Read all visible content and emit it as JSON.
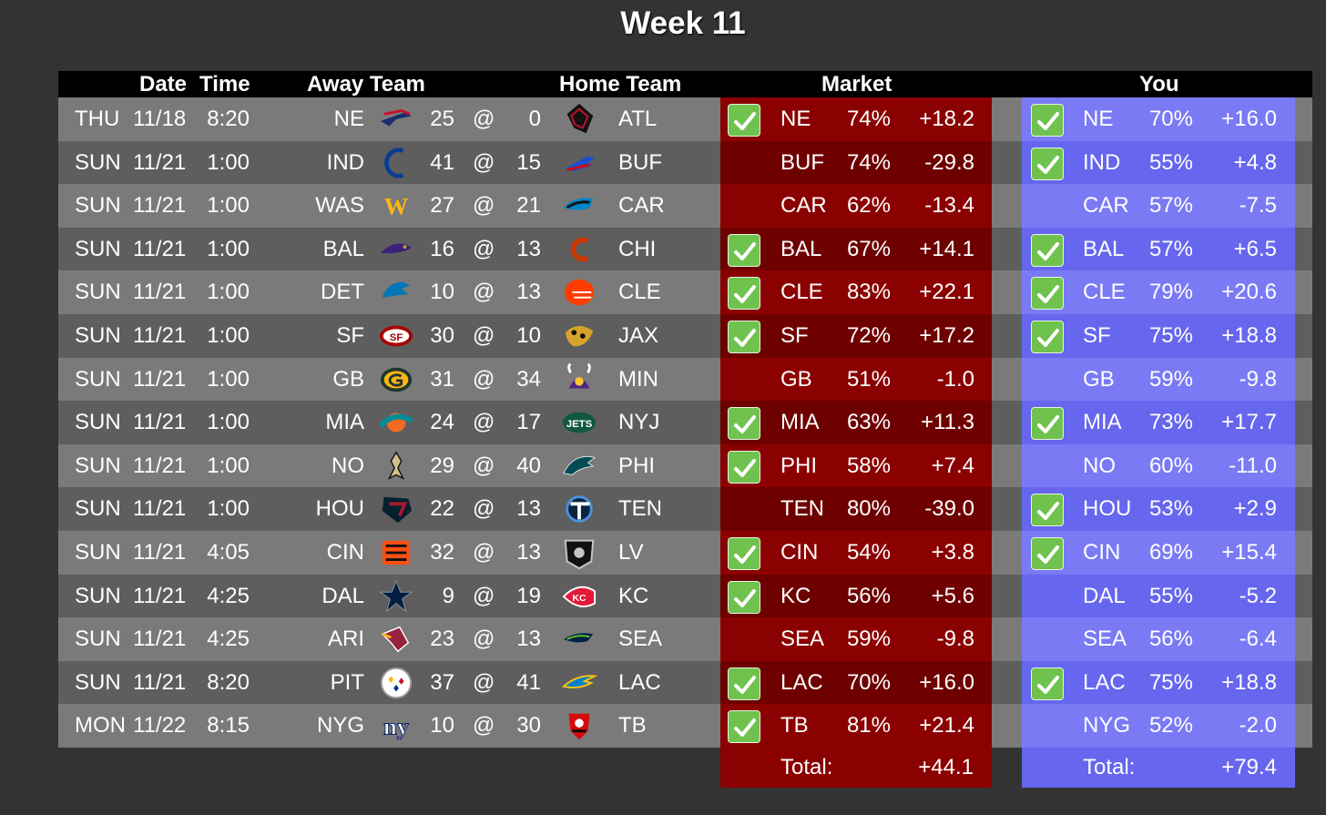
{
  "title": "Week 11",
  "headers": {
    "date": "Date",
    "time": "Time",
    "away": "Away Team",
    "home": "Home Team",
    "market": "Market",
    "you": "You"
  },
  "colors": {
    "row_light": "#7a7a7a",
    "row_dark": "#5e5e5e",
    "market_light": "#8b0000",
    "market_dark": "#6e0000",
    "you_light": "#7a7af5",
    "you_dark": "#6666ee",
    "check": "#6fc24e"
  },
  "games": [
    {
      "day": "THU",
      "date": "11/18",
      "time": "8:20",
      "away": "NE",
      "away_score": "25",
      "at": "@",
      "home_score": "0",
      "home": "ATL",
      "away_icon": "patriots-logo",
      "home_icon": "falcons-logo",
      "market": {
        "check": true,
        "pick": "NE",
        "pct": "74%",
        "pts": "+18.2"
      },
      "you": {
        "check": true,
        "pick": "NE",
        "pct": "70%",
        "pts": "+16.0"
      }
    },
    {
      "day": "SUN",
      "date": "11/21",
      "time": "1:00",
      "away": "IND",
      "away_score": "41",
      "at": "@",
      "home_score": "15",
      "home": "BUF",
      "away_icon": "colts-logo",
      "home_icon": "bills-logo",
      "market": {
        "check": false,
        "pick": "BUF",
        "pct": "74%",
        "pts": "-29.8"
      },
      "you": {
        "check": true,
        "pick": "IND",
        "pct": "55%",
        "pts": "+4.8"
      }
    },
    {
      "day": "SUN",
      "date": "11/21",
      "time": "1:00",
      "away": "WAS",
      "away_score": "27",
      "at": "@",
      "home_score": "21",
      "home": "CAR",
      "away_icon": "washington-logo",
      "home_icon": "panthers-logo",
      "market": {
        "check": false,
        "pick": "CAR",
        "pct": "62%",
        "pts": "-13.4"
      },
      "you": {
        "check": false,
        "pick": "CAR",
        "pct": "57%",
        "pts": "-7.5"
      }
    },
    {
      "day": "SUN",
      "date": "11/21",
      "time": "1:00",
      "away": "BAL",
      "away_score": "16",
      "at": "@",
      "home_score": "13",
      "home": "CHI",
      "away_icon": "ravens-logo",
      "home_icon": "bears-logo",
      "market": {
        "check": true,
        "pick": "BAL",
        "pct": "67%",
        "pts": "+14.1"
      },
      "you": {
        "check": true,
        "pick": "BAL",
        "pct": "57%",
        "pts": "+6.5"
      }
    },
    {
      "day": "SUN",
      "date": "11/21",
      "time": "1:00",
      "away": "DET",
      "away_score": "10",
      "at": "@",
      "home_score": "13",
      "home": "CLE",
      "away_icon": "lions-logo",
      "home_icon": "browns-logo",
      "market": {
        "check": true,
        "pick": "CLE",
        "pct": "83%",
        "pts": "+22.1"
      },
      "you": {
        "check": true,
        "pick": "CLE",
        "pct": "79%",
        "pts": "+20.6"
      }
    },
    {
      "day": "SUN",
      "date": "11/21",
      "time": "1:00",
      "away": "SF",
      "away_score": "30",
      "at": "@",
      "home_score": "10",
      "home": "JAX",
      "away_icon": "49ers-logo",
      "home_icon": "jaguars-logo",
      "market": {
        "check": true,
        "pick": "SF",
        "pct": "72%",
        "pts": "+17.2"
      },
      "you": {
        "check": true,
        "pick": "SF",
        "pct": "75%",
        "pts": "+18.8"
      }
    },
    {
      "day": "SUN",
      "date": "11/21",
      "time": "1:00",
      "away": "GB",
      "away_score": "31",
      "at": "@",
      "home_score": "34",
      "home": "MIN",
      "away_icon": "packers-logo",
      "home_icon": "vikings-logo",
      "market": {
        "check": false,
        "pick": "GB",
        "pct": "51%",
        "pts": "-1.0"
      },
      "you": {
        "check": false,
        "pick": "GB",
        "pct": "59%",
        "pts": "-9.8"
      }
    },
    {
      "day": "SUN",
      "date": "11/21",
      "time": "1:00",
      "away": "MIA",
      "away_score": "24",
      "at": "@",
      "home_score": "17",
      "home": "NYJ",
      "away_icon": "dolphins-logo",
      "home_icon": "jets-logo",
      "market": {
        "check": true,
        "pick": "MIA",
        "pct": "63%",
        "pts": "+11.3"
      },
      "you": {
        "check": true,
        "pick": "MIA",
        "pct": "73%",
        "pts": "+17.7"
      }
    },
    {
      "day": "SUN",
      "date": "11/21",
      "time": "1:00",
      "away": "NO",
      "away_score": "29",
      "at": "@",
      "home_score": "40",
      "home": "PHI",
      "away_icon": "saints-logo",
      "home_icon": "eagles-logo",
      "market": {
        "check": true,
        "pick": "PHI",
        "pct": "58%",
        "pts": "+7.4"
      },
      "you": {
        "check": false,
        "pick": "NO",
        "pct": "60%",
        "pts": "-11.0"
      }
    },
    {
      "day": "SUN",
      "date": "11/21",
      "time": "1:00",
      "away": "HOU",
      "away_score": "22",
      "at": "@",
      "home_score": "13",
      "home": "TEN",
      "away_icon": "texans-logo",
      "home_icon": "titans-logo",
      "market": {
        "check": false,
        "pick": "TEN",
        "pct": "80%",
        "pts": "-39.0"
      },
      "you": {
        "check": true,
        "pick": "HOU",
        "pct": "53%",
        "pts": "+2.9"
      }
    },
    {
      "day": "SUN",
      "date": "11/21",
      "time": "4:05",
      "away": "CIN",
      "away_score": "32",
      "at": "@",
      "home_score": "13",
      "home": "LV",
      "away_icon": "bengals-logo",
      "home_icon": "raiders-logo",
      "market": {
        "check": true,
        "pick": "CIN",
        "pct": "54%",
        "pts": "+3.8"
      },
      "you": {
        "check": true,
        "pick": "CIN",
        "pct": "69%",
        "pts": "+15.4"
      }
    },
    {
      "day": "SUN",
      "date": "11/21",
      "time": "4:25",
      "away": "DAL",
      "away_score": "9",
      "at": "@",
      "home_score": "19",
      "home": "KC",
      "away_icon": "cowboys-logo",
      "home_icon": "chiefs-logo",
      "market": {
        "check": true,
        "pick": "KC",
        "pct": "56%",
        "pts": "+5.6"
      },
      "you": {
        "check": false,
        "pick": "DAL",
        "pct": "55%",
        "pts": "-5.2"
      }
    },
    {
      "day": "SUN",
      "date": "11/21",
      "time": "4:25",
      "away": "ARI",
      "away_score": "23",
      "at": "@",
      "home_score": "13",
      "home": "SEA",
      "away_icon": "cardinals-logo",
      "home_icon": "seahawks-logo",
      "market": {
        "check": false,
        "pick": "SEA",
        "pct": "59%",
        "pts": "-9.8"
      },
      "you": {
        "check": false,
        "pick": "SEA",
        "pct": "56%",
        "pts": "-6.4"
      }
    },
    {
      "day": "SUN",
      "date": "11/21",
      "time": "8:20",
      "away": "PIT",
      "away_score": "37",
      "at": "@",
      "home_score": "41",
      "home": "LAC",
      "away_icon": "steelers-logo",
      "home_icon": "chargers-logo",
      "market": {
        "check": true,
        "pick": "LAC",
        "pct": "70%",
        "pts": "+16.0"
      },
      "you": {
        "check": true,
        "pick": "LAC",
        "pct": "75%",
        "pts": "+18.8"
      }
    },
    {
      "day": "MON",
      "date": "11/22",
      "time": "8:15",
      "away": "NYG",
      "away_score": "10",
      "at": "@",
      "home_score": "30",
      "home": "TB",
      "away_icon": "giants-logo",
      "home_icon": "buccaneers-logo",
      "market": {
        "check": true,
        "pick": "TB",
        "pct": "81%",
        "pts": "+21.4"
      },
      "you": {
        "check": false,
        "pick": "NYG",
        "pct": "52%",
        "pts": "-2.0"
      }
    }
  ],
  "totals": {
    "market_label": "Total:",
    "market_value": "+44.1",
    "you_label": "Total:",
    "you_value": "+79.4"
  }
}
